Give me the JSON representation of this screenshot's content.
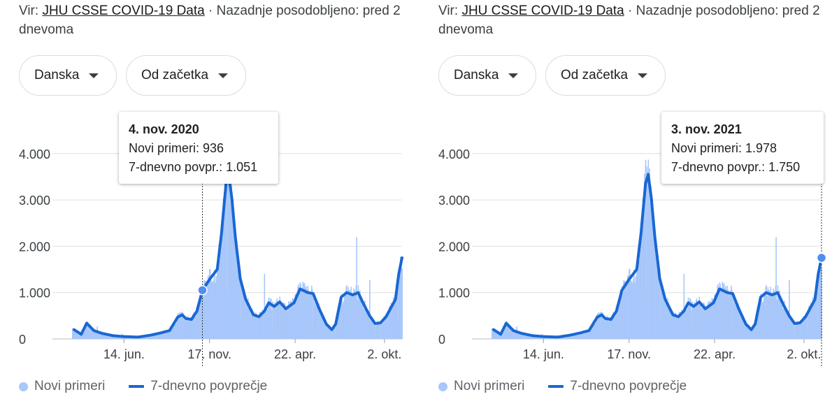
{
  "panels": [
    {
      "source_prefix": "Vir: ",
      "source_link": "JHU CSSE COVID-19 Data",
      "source_suffix": " · Nazadnje posodobljeno: pred 2 dnevoma",
      "country_select": "Danska",
      "range_select": "Od začetka",
      "tooltip": {
        "date": "4. nov. 2020",
        "new_cases": "Novi primeri: 936",
        "avg": "7-dnevno povpr.: 1.051"
      }
    },
    {
      "source_prefix": "Vir: ",
      "source_link": "JHU CSSE COVID-19 Data",
      "source_suffix": " · Nazadnje posodobljeno: pred 2 dnevoma",
      "country_select": "Danska",
      "range_select": "Od začetka",
      "tooltip": {
        "date": "3. nov. 2021",
        "new_cases": "Novi primeri: 1.978",
        "avg": "7-dnevno povpr.: 1.750"
      }
    }
  ],
  "legend": {
    "new_cases": "Novi primeri",
    "avg": "7-dnevno povprečje"
  },
  "colors": {
    "bars": "#a8c7fa",
    "line": "#1967d2",
    "grid": "#e0e0e0"
  },
  "chart_data": [
    {
      "type": "area",
      "title": "",
      "xlabel": "",
      "ylabel": "",
      "x_tick_labels": [
        "14. jun.",
        "17. nov.",
        "22. apr.",
        "2. okt."
      ],
      "y_tick_labels": [
        "0",
        "1.000",
        "2.000",
        "3.000",
        "4.000"
      ],
      "ylim": [
        0,
        4600
      ],
      "grid": true,
      "legend_position": "bottom",
      "x_start": "2020-03-01",
      "x_end": "2021-11-03",
      "highlight_date": "2020-11-04",
      "highlight_value": 1051,
      "avg_series": {
        "name": "7-dnevno povprečje",
        "points": [
          [
            "2020-03-15",
            200
          ],
          [
            "2020-03-28",
            100
          ],
          [
            "2020-04-07",
            340
          ],
          [
            "2020-04-20",
            180
          ],
          [
            "2020-05-05",
            120
          ],
          [
            "2020-05-25",
            70
          ],
          [
            "2020-06-15",
            50
          ],
          [
            "2020-07-10",
            40
          ],
          [
            "2020-08-01",
            80
          ],
          [
            "2020-08-20",
            130
          ],
          [
            "2020-09-05",
            180
          ],
          [
            "2020-09-20",
            470
          ],
          [
            "2020-09-28",
            520
          ],
          [
            "2020-10-05",
            440
          ],
          [
            "2020-10-15",
            420
          ],
          [
            "2020-10-25",
            600
          ],
          [
            "2020-11-04",
            1051
          ],
          [
            "2020-11-18",
            1300
          ],
          [
            "2020-12-01",
            1500
          ],
          [
            "2020-12-09",
            2300
          ],
          [
            "2020-12-17",
            3350
          ],
          [
            "2020-12-22",
            3550
          ],
          [
            "2020-12-28",
            3000
          ],
          [
            "2021-01-03",
            2200
          ],
          [
            "2021-01-12",
            1300
          ],
          [
            "2021-01-22",
            850
          ],
          [
            "2021-02-05",
            520
          ],
          [
            "2021-02-15",
            480
          ],
          [
            "2021-02-25",
            600
          ],
          [
            "2021-03-05",
            780
          ],
          [
            "2021-03-15",
            700
          ],
          [
            "2021-03-25",
            800
          ],
          [
            "2021-04-05",
            650
          ],
          [
            "2021-04-20",
            780
          ],
          [
            "2021-05-01",
            1080
          ],
          [
            "2021-05-15",
            1000
          ],
          [
            "2021-05-25",
            980
          ],
          [
            "2021-06-05",
            650
          ],
          [
            "2021-06-18",
            320
          ],
          [
            "2021-06-28",
            200
          ],
          [
            "2021-07-05",
            320
          ],
          [
            "2021-07-15",
            900
          ],
          [
            "2021-07-25",
            1000
          ],
          [
            "2021-08-05",
            950
          ],
          [
            "2021-08-15",
            1000
          ],
          [
            "2021-08-25",
            750
          ],
          [
            "2021-09-05",
            500
          ],
          [
            "2021-09-15",
            330
          ],
          [
            "2021-09-25",
            350
          ],
          [
            "2021-10-05",
            480
          ],
          [
            "2021-10-15",
            700
          ],
          [
            "2021-10-22",
            850
          ],
          [
            "2021-10-28",
            1400
          ],
          [
            "2021-11-03",
            1750
          ]
        ]
      }
    },
    {
      "type": "area",
      "title": "",
      "xlabel": "",
      "ylabel": "",
      "x_tick_labels": [
        "14. jun.",
        "17. nov.",
        "22. apr.",
        "2. okt."
      ],
      "y_tick_labels": [
        "0",
        "1.000",
        "2.000",
        "3.000",
        "4.000"
      ],
      "ylim": [
        0,
        4600
      ],
      "grid": true,
      "legend_position": "bottom",
      "x_start": "2020-03-01",
      "x_end": "2021-11-03",
      "highlight_date": "2021-11-03",
      "highlight_value": 1750,
      "avg_series": {
        "name": "7-dnevno povprečje",
        "points": [
          [
            "2020-03-15",
            200
          ],
          [
            "2020-03-28",
            100
          ],
          [
            "2020-04-07",
            340
          ],
          [
            "2020-04-20",
            180
          ],
          [
            "2020-05-05",
            120
          ],
          [
            "2020-05-25",
            70
          ],
          [
            "2020-06-15",
            50
          ],
          [
            "2020-07-10",
            40
          ],
          [
            "2020-08-01",
            80
          ],
          [
            "2020-08-20",
            130
          ],
          [
            "2020-09-05",
            180
          ],
          [
            "2020-09-20",
            470
          ],
          [
            "2020-09-28",
            520
          ],
          [
            "2020-10-05",
            440
          ],
          [
            "2020-10-15",
            420
          ],
          [
            "2020-10-25",
            600
          ],
          [
            "2020-11-04",
            1051
          ],
          [
            "2020-11-18",
            1300
          ],
          [
            "2020-12-01",
            1500
          ],
          [
            "2020-12-09",
            2300
          ],
          [
            "2020-12-17",
            3350
          ],
          [
            "2020-12-22",
            3550
          ],
          [
            "2020-12-28",
            3000
          ],
          [
            "2021-01-03",
            2200
          ],
          [
            "2021-01-12",
            1300
          ],
          [
            "2021-01-22",
            850
          ],
          [
            "2021-02-05",
            520
          ],
          [
            "2021-02-15",
            480
          ],
          [
            "2021-02-25",
            600
          ],
          [
            "2021-03-05",
            780
          ],
          [
            "2021-03-15",
            700
          ],
          [
            "2021-03-25",
            800
          ],
          [
            "2021-04-05",
            650
          ],
          [
            "2021-04-20",
            780
          ],
          [
            "2021-05-01",
            1080
          ],
          [
            "2021-05-15",
            1000
          ],
          [
            "2021-05-25",
            980
          ],
          [
            "2021-06-05",
            650
          ],
          [
            "2021-06-18",
            320
          ],
          [
            "2021-06-28",
            200
          ],
          [
            "2021-07-05",
            320
          ],
          [
            "2021-07-15",
            900
          ],
          [
            "2021-07-25",
            1000
          ],
          [
            "2021-08-05",
            950
          ],
          [
            "2021-08-15",
            1000
          ],
          [
            "2021-08-25",
            750
          ],
          [
            "2021-09-05",
            500
          ],
          [
            "2021-09-15",
            330
          ],
          [
            "2021-09-25",
            350
          ],
          [
            "2021-10-05",
            480
          ],
          [
            "2021-10-15",
            700
          ],
          [
            "2021-10-22",
            850
          ],
          [
            "2021-10-28",
            1400
          ],
          [
            "2021-11-03",
            1750
          ]
        ]
      }
    }
  ]
}
